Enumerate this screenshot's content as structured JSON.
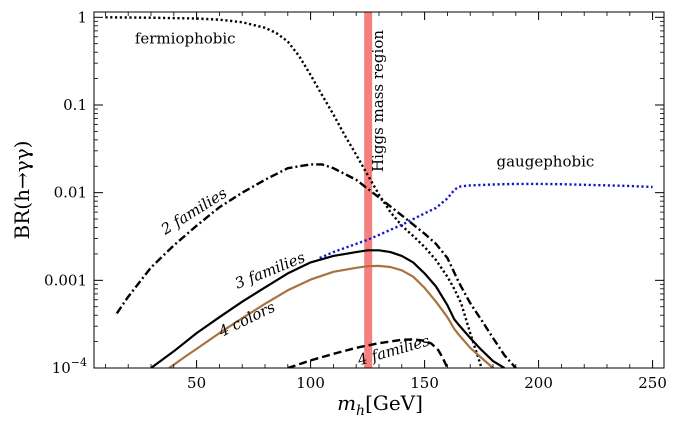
{
  "chart_data": {
    "type": "line",
    "title": "",
    "xlabel": "m_h[GeV]",
    "xlabel_parts": {
      "symbol": "m",
      "subscript": "h",
      "unit": "[GeV]"
    },
    "ylabel": "BR(h→γγ)",
    "xlim": [
      5,
      255
    ],
    "ylim": [
      0.0001,
      1.15
    ],
    "yscale": "log",
    "x_ticks": [
      50,
      100,
      150,
      200,
      250
    ],
    "x_tick_labels": [
      "50",
      "100",
      "150",
      "200",
      "250"
    ],
    "y_ticks": [
      0.0001,
      0.001,
      0.01,
      0.1,
      1
    ],
    "y_tick_labels": [
      {
        "base": "10",
        "exp": "−4"
      },
      {
        "base": "0.001",
        "exp": ""
      },
      {
        "base": "0.01",
        "exp": ""
      },
      {
        "base": "0.1",
        "exp": ""
      },
      {
        "base": "1",
        "exp": ""
      }
    ],
    "grid": false,
    "band": {
      "x": [
        123.5,
        127
      ],
      "color": "#f46a6a",
      "label": "Higgs mass region"
    },
    "series": [
      {
        "name": "fermiophobic",
        "style": "dotted",
        "color": "#000000",
        "x": [
          10,
          30,
          50,
          60,
          70,
          80,
          85,
          90,
          95,
          100,
          105,
          110,
          115,
          120,
          125,
          130,
          135,
          140,
          145,
          150,
          155,
          160,
          163,
          166,
          170,
          175
        ],
        "y": [
          1.0,
          0.99,
          0.97,
          0.94,
          0.88,
          0.76,
          0.66,
          0.53,
          0.36,
          0.22,
          0.13,
          0.078,
          0.045,
          0.027,
          0.016,
          0.0095,
          0.006,
          0.0042,
          0.0032,
          0.0024,
          0.0017,
          0.0011,
          0.0008,
          0.00055,
          0.00025,
          0.0001
        ]
      },
      {
        "name": "2 families",
        "style": "dashdot",
        "color": "#000000",
        "x": [
          15,
          20,
          30,
          40,
          50,
          60,
          70,
          80,
          90,
          100,
          105,
          110,
          120,
          130,
          140,
          150,
          155,
          160,
          165,
          170,
          175,
          180,
          185,
          190
        ],
        "y": [
          0.00042,
          0.00065,
          0.0014,
          0.0025,
          0.0042,
          0.0068,
          0.01,
          0.014,
          0.019,
          0.021,
          0.021,
          0.019,
          0.014,
          0.0088,
          0.0055,
          0.0034,
          0.0026,
          0.0018,
          0.00095,
          0.00055,
          0.00035,
          0.00022,
          0.00014,
          0.0001
        ]
      },
      {
        "name": "3 families",
        "style": "solid",
        "color": "#000000",
        "x": [
          30,
          40,
          50,
          60,
          70,
          80,
          90,
          100,
          110,
          120,
          125,
          130,
          135,
          140,
          145,
          150,
          155,
          160,
          163,
          165,
          170,
          175,
          180,
          185
        ],
        "y": [
          0.0001,
          0.000155,
          0.00025,
          0.00038,
          0.00057,
          0.00083,
          0.0012,
          0.0016,
          0.0019,
          0.0021,
          0.0022,
          0.0022,
          0.0021,
          0.0019,
          0.0016,
          0.0012,
          0.00085,
          0.00052,
          0.00036,
          0.00031,
          0.00022,
          0.00016,
          0.00012,
          0.0001
        ]
      },
      {
        "name": "4 colors",
        "style": "solid",
        "color": "#a8723e",
        "x": [
          38,
          45,
          50,
          60,
          70,
          80,
          90,
          100,
          110,
          120,
          125,
          130,
          135,
          140,
          145,
          150,
          155,
          160,
          163,
          165,
          170,
          175,
          180
        ],
        "y": [
          0.0001,
          0.000135,
          0.000165,
          0.00025,
          0.00037,
          0.00054,
          0.00077,
          0.00102,
          0.00125,
          0.00139,
          0.00145,
          0.00146,
          0.00142,
          0.0013,
          0.0011,
          0.00082,
          0.00057,
          0.00038,
          0.00028,
          0.00024,
          0.00017,
          0.00013,
          0.0001
        ]
      },
      {
        "name": "4 families",
        "style": "dashed",
        "color": "#000000",
        "x": [
          90,
          100,
          110,
          120,
          130,
          140,
          145,
          150,
          153,
          156,
          158,
          160
        ],
        "y": [
          0.0001,
          0.000122,
          0.000145,
          0.00017,
          0.000192,
          0.00021,
          0.000212,
          0.000205,
          0.00019,
          0.00016,
          0.00013,
          0.0001
        ]
      },
      {
        "name": "gaugephobic",
        "style": "dotted",
        "color": "#1515cc",
        "x": [
          104,
          110,
          120,
          125,
          130,
          140,
          150,
          155,
          160,
          163,
          165,
          170,
          180,
          190,
          200,
          210,
          220,
          230,
          240,
          250
        ],
        "y": [
          0.0018,
          0.0021,
          0.0026,
          0.0029,
          0.0033,
          0.0043,
          0.0058,
          0.0067,
          0.0086,
          0.0107,
          0.0117,
          0.0121,
          0.0124,
          0.0126,
          0.0126,
          0.0125,
          0.0123,
          0.0121,
          0.0119,
          0.0116
        ]
      }
    ],
    "annotations": [
      {
        "text": "fermiophobic",
        "x": 45,
        "y": 0.5,
        "rotate": 0,
        "italic": false
      },
      {
        "text": "2 families",
        "x": 50,
        "y": 0.0055,
        "rotate": -32,
        "italic": true
      },
      {
        "text": "3 families",
        "x": 83,
        "y": 0.00115,
        "rotate": -22,
        "italic": true
      },
      {
        "text": "4 colors",
        "x": 73,
        "y": 0.00032,
        "rotate": -26,
        "italic": true
      },
      {
        "text": "4 families",
        "x": 137,
        "y": 0.00014,
        "rotate": -16,
        "italic": true
      },
      {
        "text": "gaugephobic",
        "x": 203,
        "y": 0.02,
        "rotate": 0,
        "italic": false
      }
    ]
  }
}
